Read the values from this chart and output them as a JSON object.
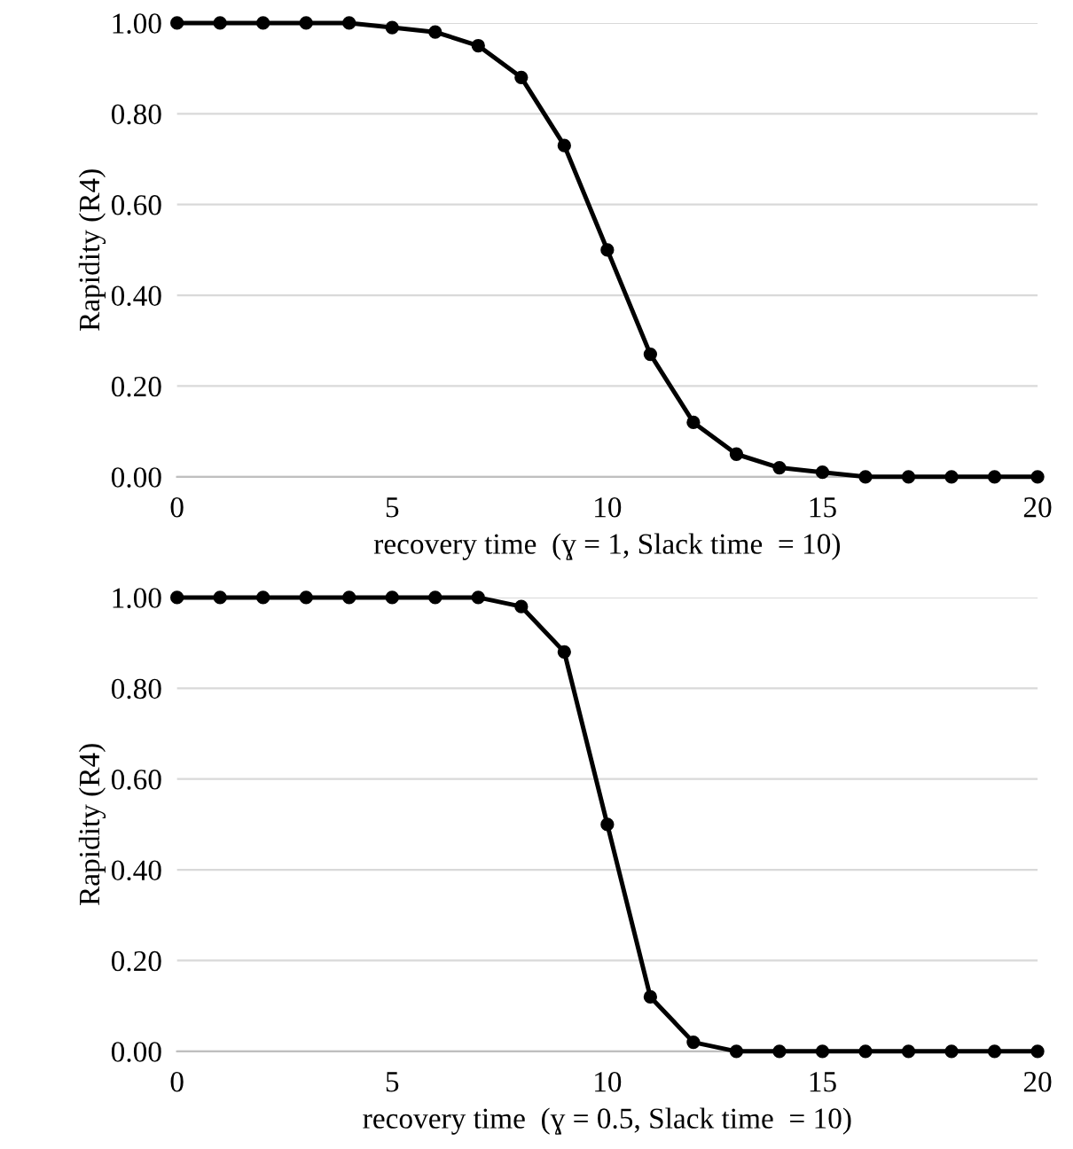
{
  "chart_data": [
    {
      "type": "line",
      "xlabel": "recovery time  (ɣ = 1, Slack time  = 10)",
      "ylabel": "Rapidity (R4)",
      "x": [
        0,
        1,
        2,
        3,
        4,
        5,
        6,
        7,
        8,
        9,
        10,
        11,
        12,
        13,
        14,
        15,
        16,
        17,
        18,
        19,
        20
      ],
      "series": [
        {
          "color": "#000000",
          "values": [
            1.0,
            1.0,
            1.0,
            1.0,
            1.0,
            0.99,
            0.98,
            0.95,
            0.88,
            0.73,
            0.5,
            0.27,
            0.12,
            0.05,
            0.02,
            0.01,
            0.0,
            0.0,
            0.0,
            0.0,
            0.0
          ]
        }
      ],
      "xlim": [
        0,
        20
      ],
      "xticks": [
        0,
        5,
        10,
        15,
        20
      ],
      "ylim": [
        0,
        1
      ],
      "yticks": [
        {
          "value": 0,
          "label": "0.00"
        },
        {
          "value": 0.2,
          "label": "0.20"
        },
        {
          "value": 0.4,
          "label": "0.40"
        },
        {
          "value": 0.6,
          "label": "0.60"
        },
        {
          "value": 0.8,
          "label": "0.80"
        },
        {
          "value": 1,
          "label": "1.00"
        }
      ],
      "grid": "y",
      "marker": "circle",
      "line_style": "solid"
    },
    {
      "type": "line",
      "xlabel": "recovery time  (ɣ = 0.5, Slack time  = 10)",
      "ylabel": "Rapidity (R4)",
      "x": [
        0,
        1,
        2,
        3,
        4,
        5,
        6,
        7,
        8,
        9,
        10,
        11,
        12,
        13,
        14,
        15,
        16,
        17,
        18,
        19,
        20
      ],
      "series": [
        {
          "color": "#000000",
          "values": [
            1.0,
            1.0,
            1.0,
            1.0,
            1.0,
            1.0,
            1.0,
            1.0,
            0.98,
            0.88,
            0.5,
            0.12,
            0.02,
            0.0,
            0.0,
            0.0,
            0.0,
            0.0,
            0.0,
            0.0,
            0.0
          ]
        }
      ],
      "xlim": [
        0,
        20
      ],
      "xticks": [
        0,
        5,
        10,
        15,
        20
      ],
      "ylim": [
        0,
        1
      ],
      "yticks": [
        {
          "value": 0,
          "label": "0.00"
        },
        {
          "value": 0.2,
          "label": "0.20"
        },
        {
          "value": 0.4,
          "label": "0.40"
        },
        {
          "value": 0.6,
          "label": "0.60"
        },
        {
          "value": 0.8,
          "label": "0.80"
        },
        {
          "value": 1,
          "label": "1.00"
        }
      ],
      "grid": "y",
      "marker": "circle",
      "line_style": "solid"
    }
  ]
}
